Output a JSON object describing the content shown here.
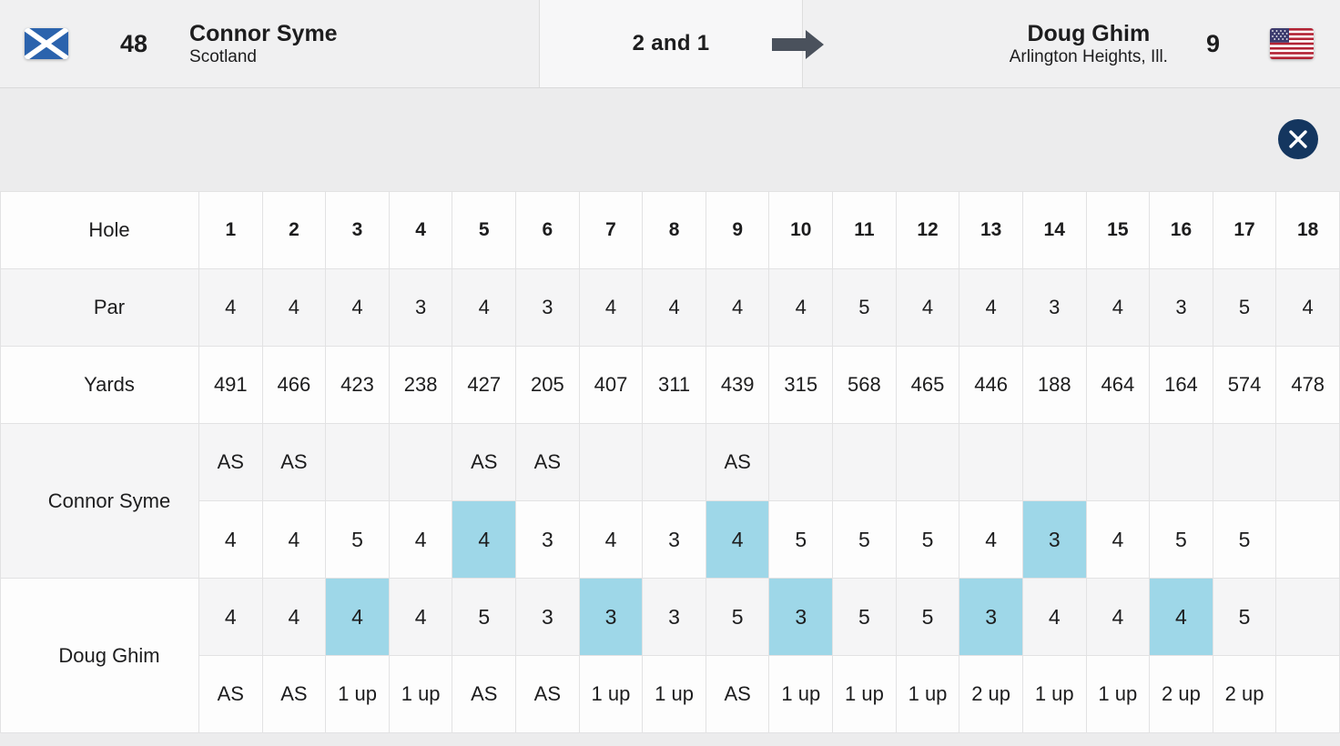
{
  "header": {
    "player_left": {
      "seed": "48",
      "name": "Connor Syme",
      "location": "Scotland",
      "flag_icon": "scotland-flag"
    },
    "result": "2 and 1",
    "result_arrow_icon": "arrow-right",
    "player_right": {
      "seed": "9",
      "name": "Doug Ghim",
      "location": "Arlington Heights, Ill.",
      "flag_icon": "usa-flag"
    }
  },
  "toolbar": {
    "close_icon": "close-x"
  },
  "colors": {
    "highlight_win": "#9ed7e8",
    "close_button_navy": "#14365f",
    "arrow_gray": "#4a515c",
    "row_stripe": "#f5f5f6",
    "scotland_blue": "#2b63ad",
    "usa_red": "#b22234",
    "usa_blue": "#3c3b6e"
  },
  "scorecard": {
    "row_labels": {
      "hole": "Hole",
      "par": "Par",
      "yards": "Yards",
      "player1": "Connor Syme",
      "player2": "Doug Ghim"
    },
    "holes": [
      "1",
      "2",
      "3",
      "4",
      "5",
      "6",
      "7",
      "8",
      "9",
      "10",
      "11",
      "12",
      "13",
      "14",
      "15",
      "16",
      "17",
      "18"
    ],
    "par": [
      "4",
      "4",
      "4",
      "3",
      "4",
      "3",
      "4",
      "4",
      "4",
      "4",
      "5",
      "4",
      "4",
      "3",
      "4",
      "3",
      "5",
      "4"
    ],
    "yards": [
      "491",
      "466",
      "423",
      "238",
      "427",
      "205",
      "407",
      "311",
      "439",
      "315",
      "568",
      "465",
      "446",
      "188",
      "464",
      "164",
      "574",
      "478"
    ],
    "player1_status": [
      "AS",
      "AS",
      "",
      "",
      "AS",
      "AS",
      "",
      "",
      "AS",
      "",
      "",
      "",
      "",
      "",
      "",
      "",
      "",
      ""
    ],
    "player1_scores": [
      "4",
      "4",
      "5",
      "4",
      "4",
      "3",
      "4",
      "3",
      "4",
      "5",
      "5",
      "5",
      "4",
      "3",
      "4",
      "5",
      "5",
      ""
    ],
    "player1_holes_won": [
      5,
      9,
      14
    ],
    "player2_scores": [
      "4",
      "4",
      "4",
      "4",
      "5",
      "3",
      "3",
      "3",
      "5",
      "3",
      "5",
      "5",
      "3",
      "4",
      "4",
      "4",
      "5",
      ""
    ],
    "player2_holes_won": [
      3,
      7,
      10,
      13,
      16
    ],
    "player2_status": [
      "AS",
      "AS",
      "1 up",
      "1 up",
      "AS",
      "AS",
      "1 up",
      "1 up",
      "AS",
      "1 up",
      "1 up",
      "1 up",
      "2 up",
      "1 up",
      "1 up",
      "2 up",
      "2 up",
      ""
    ]
  }
}
